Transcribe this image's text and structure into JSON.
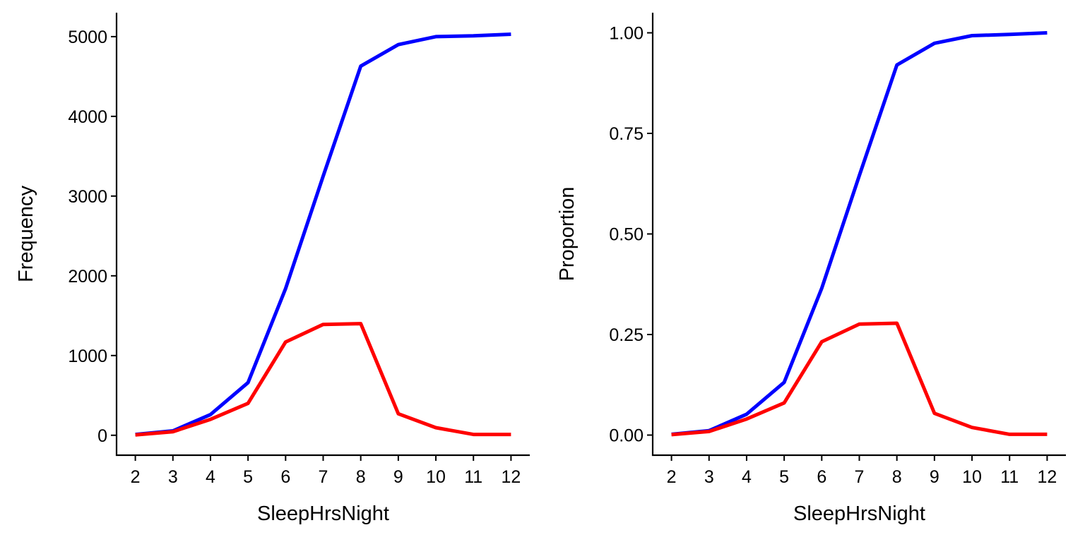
{
  "colors": {
    "series_1": "#0000ff",
    "series_2": "#ff0000",
    "axis": "#000000",
    "background": "#ffffff"
  },
  "chart_data": [
    {
      "type": "line",
      "xlabel": "SleepHrsNight",
      "ylabel": "Frequency",
      "x": [
        2,
        3,
        4,
        5,
        6,
        7,
        8,
        9,
        10,
        11,
        12
      ],
      "xlim": [
        1.5,
        12.5
      ],
      "ylim": [
        -250,
        5300
      ],
      "yticks": [
        0,
        1000,
        2000,
        3000,
        4000,
        5000
      ],
      "ytick_labels": [
        "0",
        "1000",
        "2000",
        "3000",
        "4000",
        "5000"
      ],
      "xtick_labels": [
        "2",
        "3",
        "4",
        "5",
        "6",
        "7",
        "8",
        "9",
        "10",
        "11",
        "12"
      ],
      "grid": false,
      "legend": "none",
      "series": [
        {
          "color": "#0000ff",
          "values": [
            10,
            55,
            260,
            660,
            1840,
            3250,
            4630,
            4900,
            5000,
            5010,
            5030
          ]
        },
        {
          "color": "#ff0000",
          "values": [
            5,
            45,
            200,
            400,
            1170,
            1390,
            1400,
            270,
            95,
            10,
            10
          ]
        }
      ]
    },
    {
      "type": "line",
      "xlabel": "SleepHrsNight",
      "ylabel": "Proportion",
      "x": [
        2,
        3,
        4,
        5,
        6,
        7,
        8,
        9,
        10,
        11,
        12
      ],
      "xlim": [
        1.5,
        12.5
      ],
      "ylim": [
        -0.05,
        1.05
      ],
      "yticks": [
        0,
        0.25,
        0.5,
        0.75,
        1
      ],
      "ytick_labels": [
        "0.00",
        "0.25",
        "0.50",
        "0.75",
        "1.00"
      ],
      "xtick_labels": [
        "2",
        "3",
        "4",
        "5",
        "6",
        "7",
        "8",
        "9",
        "10",
        "11",
        "12"
      ],
      "grid": false,
      "legend": "none",
      "series": [
        {
          "color": "#0000ff",
          "values": [
            0.002,
            0.011,
            0.052,
            0.131,
            0.365,
            0.645,
            0.92,
            0.974,
            0.993,
            0.996,
            1.0
          ]
        },
        {
          "color": "#ff0000",
          "values": [
            0.001,
            0.009,
            0.04,
            0.08,
            0.232,
            0.276,
            0.278,
            0.054,
            0.019,
            0.002,
            0.002
          ]
        }
      ]
    }
  ]
}
